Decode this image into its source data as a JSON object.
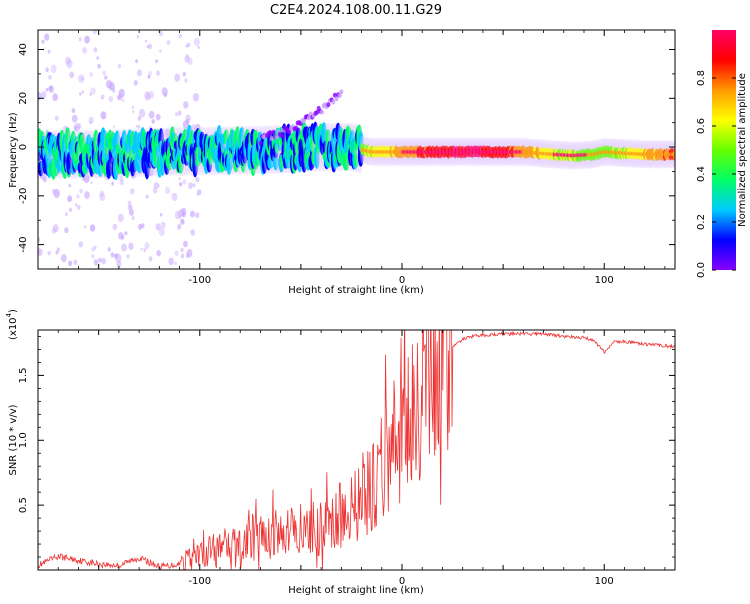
{
  "figure": {
    "title": "C2E4.2024.108.00.11.G29"
  },
  "chart_data": [
    {
      "type": "heatmap",
      "xlabel": "Height of straight line (km)",
      "ylabel": "Frequency (Hz)",
      "xlim": [
        -180,
        135
      ],
      "ylim": [
        -50,
        48
      ],
      "x_ticks": [
        -100,
        0,
        100
      ],
      "x_tick_labels": [
        "-100",
        "0",
        "100"
      ],
      "y_ticks": [
        -40,
        -20,
        0,
        20,
        40
      ],
      "y_tick_labels": [
        "-40",
        "-20",
        "0",
        "20",
        "40"
      ],
      "grid": false,
      "colorbar": {
        "label": "Normalized spectral amplitude",
        "range": [
          0,
          1
        ],
        "ticks": [
          0,
          0.2,
          0.4,
          0.6,
          0.8
        ],
        "tick_labels": [
          "0.0",
          "0.2",
          "0.4",
          "0.6",
          "0.8"
        ],
        "colormap": [
          "#8800ff",
          "#0000ff",
          "#00ccff",
          "#00ff66",
          "#66ff00",
          "#ffff00",
          "#ff9900",
          "#ff0000",
          "#ff0066"
        ]
      },
      "ridge": {
        "x": [
          -180,
          -150,
          -120,
          -90,
          -60,
          -40,
          -25,
          -15,
          0,
          20,
          40,
          60,
          75,
          85,
          95,
          100,
          110,
          120,
          135
        ],
        "y": [
          -3,
          -3,
          -2,
          -1.5,
          -1,
          0,
          0,
          -2,
          -2,
          -2,
          -2,
          -2,
          -3,
          -3.5,
          -3,
          -2,
          -2.5,
          -3,
          -3
        ]
      },
      "branch": {
        "x": [
          -70,
          -60,
          -50,
          -40,
          -35,
          -30
        ],
        "y": [
          3,
          6,
          10,
          15,
          19,
          22
        ]
      }
    },
    {
      "type": "line",
      "xlabel": "Height of straight line (km)",
      "ylabel": "SNR (10 * v/v)",
      "y_multiplier_label": "(x10",
      "y_multiplier_exp": "4",
      "xlim": [
        -180,
        135
      ],
      "ylim": [
        0,
        1.85
      ],
      "x_ticks": [
        -100,
        0,
        100
      ],
      "x_tick_labels": [
        "-100",
        "0",
        "100"
      ],
      "y_ticks": [
        0.5,
        1.0,
        1.5
      ],
      "y_tick_labels": [
        "0.5",
        "1.0",
        "1.5"
      ],
      "grid": false,
      "color": "#ee3333",
      "series": [
        {
          "x": [
            -180,
            -170,
            -160,
            -150,
            -140,
            -130,
            -120,
            -110,
            -100,
            -90,
            -80,
            -70,
            -60,
            -50,
            -40,
            -35,
            -30,
            -25,
            -20,
            -15,
            -10,
            -5,
            0,
            5,
            10,
            15,
            20,
            25,
            30,
            35,
            40,
            50,
            60,
            70,
            80,
            90,
            95,
            100,
            105,
            110,
            120,
            130,
            135
          ],
          "values": [
            0.03,
            0.1,
            0.07,
            0.04,
            0.03,
            0.09,
            0.02,
            0.04,
            0.1,
            0.16,
            0.2,
            0.24,
            0.26,
            0.3,
            0.3,
            0.34,
            0.4,
            0.46,
            0.52,
            0.6,
            0.72,
            0.88,
            1.0,
            1.1,
            1.22,
            1.38,
            1.6,
            1.72,
            1.78,
            1.8,
            1.81,
            1.82,
            1.82,
            1.82,
            1.8,
            1.79,
            1.77,
            1.68,
            1.76,
            1.76,
            1.74,
            1.73,
            1.72
          ]
        }
      ]
    }
  ]
}
